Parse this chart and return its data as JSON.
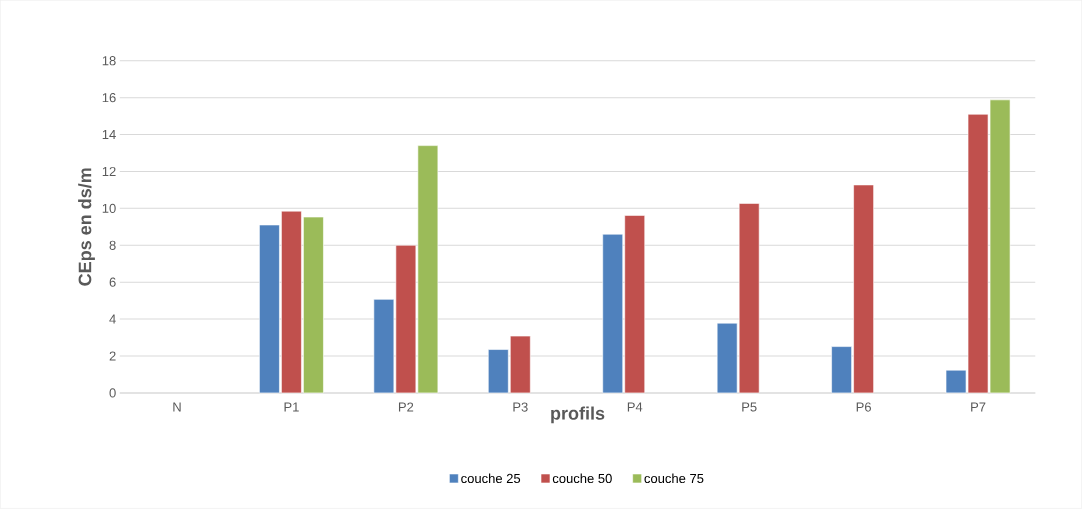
{
  "chart_data": {
    "type": "bar",
    "xlabel": "profils",
    "ylabel": "CEps en ds/m",
    "categories": [
      "N",
      "P1",
      "P2",
      "P3",
      "P4",
      "P5",
      "P6",
      "P7"
    ],
    "series": [
      {
        "name": "couche 25",
        "color": "#4f81bd",
        "values": [
          null,
          9.1,
          5.07,
          2.35,
          8.6,
          3.78,
          2.51,
          1.23
        ]
      },
      {
        "name": "couche 50",
        "color": "#c0504d",
        "values": [
          null,
          9.85,
          8.0,
          3.08,
          9.62,
          10.27,
          11.27,
          15.1
        ]
      },
      {
        "name": "couche 75",
        "color": "#9bbb59",
        "values": [
          null,
          9.53,
          13.4,
          null,
          null,
          null,
          null,
          15.88
        ]
      }
    ],
    "ylim": [
      0,
      18
    ],
    "yticks": [
      0,
      2,
      4,
      6,
      8,
      10,
      12,
      14,
      16,
      18
    ],
    "grid": "y",
    "legend": "bottom"
  }
}
